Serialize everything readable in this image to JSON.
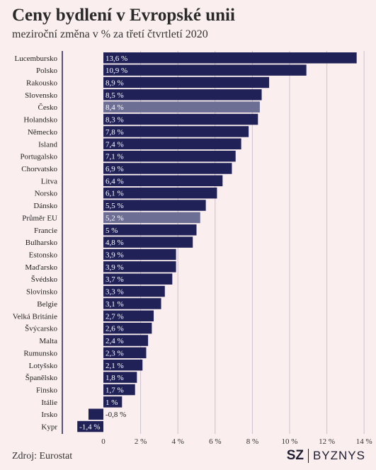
{
  "title": "Ceny bydlení v Evropské unii",
  "subtitle": "meziroční změna v % za třetí čtvrtletí 2020",
  "source": "Zdroj: Eurostat",
  "brand": {
    "mark": "SZ",
    "name": "BYZNYS"
  },
  "colors": {
    "bar": "#1f2157",
    "bar_highlight": "#6d6e94",
    "background": "#fbeeee",
    "grid": "#c9c2cc"
  },
  "chart_data": {
    "type": "bar",
    "orientation": "horizontal",
    "categories": [
      "Lucembursko",
      "Polsko",
      "Rakousko",
      "Slovensko",
      "Česko",
      "Holandsko",
      "Německo",
      "Island",
      "Portugalsko",
      "Chorvatsko",
      "Litva",
      "Norsko",
      "Dánsko",
      "Průměr EU",
      "Francie",
      "Bulharsko",
      "Estonsko",
      "Maďarsko",
      "Švédsko",
      "Slovinsko",
      "Belgie",
      "Velká Británie",
      "Švýcarsko",
      "Malta",
      "Rumunsko",
      "Lotyšsko",
      "Španělsko",
      "Finsko",
      "Itálie",
      "Irsko",
      "Kypr"
    ],
    "values": [
      13.6,
      10.9,
      8.9,
      8.5,
      8.4,
      8.3,
      7.8,
      7.4,
      7.1,
      6.9,
      6.4,
      6.1,
      5.5,
      5.2,
      5.0,
      4.8,
      3.9,
      3.9,
      3.7,
      3.3,
      3.1,
      2.7,
      2.6,
      2.4,
      2.3,
      2.1,
      1.8,
      1.7,
      1.0,
      -0.8,
      -1.4
    ],
    "value_labels": [
      "13,6 %",
      "10,9 %",
      "8,9 %",
      "8,5 %",
      "8,4 %",
      "8,3 %",
      "7,8 %",
      "7,4 %",
      "7,1 %",
      "6,9 %",
      "6,4 %",
      "6,1 %",
      "5,5 %",
      "5,2 %",
      "5 %",
      "4,8 %",
      "3,9 %",
      "3,9 %",
      "3,7 %",
      "3,3 %",
      "3,1 %",
      "2,7 %",
      "2,6 %",
      "2,4 %",
      "2,3 %",
      "2,1 %",
      "1,8 %",
      "1,7 %",
      "1 %",
      "-0,8 %",
      "-1,4 %"
    ],
    "highlighted": [
      "Česko",
      "Průměr EU"
    ],
    "xlim": [
      -1.4,
      14
    ],
    "xticks": [
      0,
      2,
      4,
      6,
      8,
      10,
      12,
      14
    ],
    "xtick_labels": [
      "0",
      "2 %",
      "4 %",
      "6 %",
      "8 %",
      "10 %",
      "12 %",
      "14 %"
    ],
    "grid": true
  }
}
